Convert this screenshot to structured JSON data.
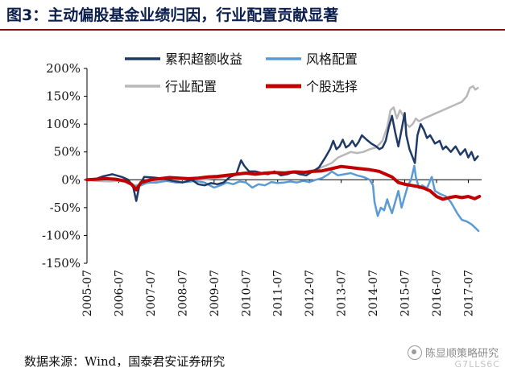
{
  "title": "图3：主动偏股基金业绩归因，行业配置贡献显著",
  "source": "数据来源：Wind，国泰君安证券研究",
  "watermark": {
    "text": "陈显顺策略研究",
    "sub": "G7LLS6C"
  },
  "colors": {
    "excess": "#1f3a66",
    "style": "#5b9bd5",
    "industry": "#b8b8b8",
    "stock": "#c00000",
    "title": "#0b1f4e",
    "rule": "#8b0d1c"
  },
  "chart_data": {
    "type": "line",
    "ylim": [
      -150,
      200
    ],
    "yticks": [
      -150,
      -100,
      -50,
      0,
      50,
      100,
      150,
      200
    ],
    "ytick_labels": [
      "-150%",
      "-100%",
      "-50%",
      "0%",
      "50%",
      "100%",
      "150%",
      "200%"
    ],
    "xlim": [
      2005.5,
      2017.92
    ],
    "xticks": [
      2005.5,
      2006.5,
      2007.5,
      2008.5,
      2009.5,
      2010.5,
      2011.5,
      2012.5,
      2013.5,
      2014.5,
      2015.5,
      2016.5,
      2017.5
    ],
    "xtick_labels": [
      "2005-07",
      "2006-07",
      "2007-07",
      "2008-07",
      "2009-07",
      "2010-07",
      "2011-07",
      "2012-07",
      "2013-07",
      "2014-07",
      "2015-07",
      "2016-07",
      "2017-07"
    ],
    "legend": [
      "累积超额收益",
      "风格配置",
      "行业配置",
      "个股选择"
    ],
    "series": [
      {
        "name": "累积超额收益",
        "key": "excess",
        "points": [
          [
            2005.5,
            0
          ],
          [
            2005.8,
            2
          ],
          [
            2006.0,
            6
          ],
          [
            2006.3,
            10
          ],
          [
            2006.6,
            5
          ],
          [
            2006.8,
            0
          ],
          [
            2006.95,
            -12
          ],
          [
            2007.05,
            -38
          ],
          [
            2007.15,
            -10
          ],
          [
            2007.3,
            5
          ],
          [
            2007.6,
            4
          ],
          [
            2007.9,
            2
          ],
          [
            2008.2,
            -2
          ],
          [
            2008.5,
            -5
          ],
          [
            2008.8,
            0
          ],
          [
            2009.0,
            -8
          ],
          [
            2009.2,
            -10
          ],
          [
            2009.4,
            -6
          ],
          [
            2009.6,
            -8
          ],
          [
            2009.8,
            -5
          ],
          [
            2010.0,
            5
          ],
          [
            2010.2,
            10
          ],
          [
            2010.35,
            35
          ],
          [
            2010.45,
            25
          ],
          [
            2010.6,
            15
          ],
          [
            2010.8,
            15
          ],
          [
            2011.0,
            12
          ],
          [
            2011.2,
            10
          ],
          [
            2011.4,
            15
          ],
          [
            2011.6,
            8
          ],
          [
            2011.8,
            10
          ],
          [
            2012.0,
            14
          ],
          [
            2012.2,
            10
          ],
          [
            2012.4,
            8
          ],
          [
            2012.6,
            15
          ],
          [
            2012.8,
            22
          ],
          [
            2013.0,
            40
          ],
          [
            2013.15,
            55
          ],
          [
            2013.25,
            70
          ],
          [
            2013.35,
            55
          ],
          [
            2013.45,
            60
          ],
          [
            2013.55,
            72
          ],
          [
            2013.65,
            58
          ],
          [
            2013.75,
            62
          ],
          [
            2013.85,
            70
          ],
          [
            2013.95,
            60
          ],
          [
            2014.05,
            68
          ],
          [
            2014.15,
            80
          ],
          [
            2014.3,
            72
          ],
          [
            2014.45,
            65
          ],
          [
            2014.6,
            60
          ],
          [
            2014.7,
            55
          ],
          [
            2014.8,
            58
          ],
          [
            2014.9,
            70
          ],
          [
            2015.0,
            95
          ],
          [
            2015.1,
            115
          ],
          [
            2015.2,
            85
          ],
          [
            2015.3,
            60
          ],
          [
            2015.4,
            90
          ],
          [
            2015.5,
            120
          ],
          [
            2015.55,
            80
          ],
          [
            2015.65,
            55
          ],
          [
            2015.75,
            40
          ],
          [
            2015.82,
            30
          ],
          [
            2015.9,
            80
          ],
          [
            2016.0,
            100
          ],
          [
            2016.1,
            90
          ],
          [
            2016.2,
            75
          ],
          [
            2016.3,
            80
          ],
          [
            2016.45,
            65
          ],
          [
            2016.6,
            70
          ],
          [
            2016.7,
            55
          ],
          [
            2016.8,
            60
          ],
          [
            2016.95,
            50
          ],
          [
            2017.1,
            60
          ],
          [
            2017.25,
            45
          ],
          [
            2017.4,
            55
          ],
          [
            2017.5,
            40
          ],
          [
            2017.6,
            50
          ],
          [
            2017.7,
            35
          ],
          [
            2017.8,
            42
          ]
        ]
      },
      {
        "name": "风格配置",
        "key": "style",
        "points": [
          [
            2005.5,
            0
          ],
          [
            2005.8,
            0
          ],
          [
            2006.2,
            2
          ],
          [
            2006.5,
            0
          ],
          [
            2006.8,
            -2
          ],
          [
            2007.0,
            -12
          ],
          [
            2007.2,
            -10
          ],
          [
            2007.4,
            -5
          ],
          [
            2007.7,
            -5
          ],
          [
            2008.0,
            -2
          ],
          [
            2008.3,
            -5
          ],
          [
            2008.6,
            -4
          ],
          [
            2008.9,
            -2
          ],
          [
            2009.2,
            -5
          ],
          [
            2009.5,
            -14
          ],
          [
            2009.7,
            -10
          ],
          [
            2009.9,
            -5
          ],
          [
            2010.1,
            -8
          ],
          [
            2010.3,
            -3
          ],
          [
            2010.5,
            -5
          ],
          [
            2010.7,
            -14
          ],
          [
            2010.9,
            -8
          ],
          [
            2011.1,
            -10
          ],
          [
            2011.3,
            -4
          ],
          [
            2011.5,
            -6
          ],
          [
            2011.7,
            -5
          ],
          [
            2011.9,
            -3
          ],
          [
            2012.1,
            -5
          ],
          [
            2012.3,
            -2
          ],
          [
            2012.5,
            -4
          ],
          [
            2012.7,
            0
          ],
          [
            2012.9,
            3
          ],
          [
            2013.1,
            10
          ],
          [
            2013.2,
            15
          ],
          [
            2013.4,
            8
          ],
          [
            2013.6,
            10
          ],
          [
            2013.8,
            12
          ],
          [
            2014.0,
            8
          ],
          [
            2014.2,
            5
          ],
          [
            2014.4,
            0
          ],
          [
            2014.5,
            -10
          ],
          [
            2014.55,
            -40
          ],
          [
            2014.65,
            -65
          ],
          [
            2014.75,
            -50
          ],
          [
            2014.85,
            -55
          ],
          [
            2014.95,
            -35
          ],
          [
            2015.0,
            -45
          ],
          [
            2015.1,
            -60
          ],
          [
            2015.2,
            -40
          ],
          [
            2015.3,
            -20
          ],
          [
            2015.4,
            -50
          ],
          [
            2015.5,
            -30
          ],
          [
            2015.6,
            -10
          ],
          [
            2015.7,
            0
          ],
          [
            2015.8,
            25
          ],
          [
            2015.85,
            5
          ],
          [
            2015.95,
            -15
          ],
          [
            2016.05,
            -10
          ],
          [
            2016.2,
            -15
          ],
          [
            2016.35,
            5
          ],
          [
            2016.45,
            -20
          ],
          [
            2016.6,
            -25
          ],
          [
            2016.8,
            -30
          ],
          [
            2016.95,
            -40
          ],
          [
            2017.05,
            -50
          ],
          [
            2017.15,
            -60
          ],
          [
            2017.3,
            -72
          ],
          [
            2017.45,
            -75
          ],
          [
            2017.6,
            -80
          ],
          [
            2017.75,
            -88
          ],
          [
            2017.82,
            -92
          ]
        ]
      },
      {
        "name": "行业配置",
        "key": "industry",
        "points": [
          [
            2005.5,
            0
          ],
          [
            2005.8,
            -2
          ],
          [
            2006.2,
            -3
          ],
          [
            2006.5,
            -2
          ],
          [
            2006.8,
            -5
          ],
          [
            2007.0,
            -10
          ],
          [
            2007.2,
            -8
          ],
          [
            2007.5,
            -5
          ],
          [
            2007.8,
            -3
          ],
          [
            2008.1,
            -2
          ],
          [
            2008.4,
            0
          ],
          [
            2008.8,
            2
          ],
          [
            2009.1,
            0
          ],
          [
            2009.4,
            2
          ],
          [
            2009.7,
            4
          ],
          [
            2010.0,
            6
          ],
          [
            2010.3,
            10
          ],
          [
            2010.6,
            12
          ],
          [
            2010.9,
            10
          ],
          [
            2011.2,
            12
          ],
          [
            2011.5,
            14
          ],
          [
            2011.8,
            14
          ],
          [
            2012.1,
            16
          ],
          [
            2012.4,
            15
          ],
          [
            2012.7,
            18
          ],
          [
            2013.0,
            25
          ],
          [
            2013.2,
            30
          ],
          [
            2013.4,
            40
          ],
          [
            2013.6,
            45
          ],
          [
            2013.8,
            50
          ],
          [
            2014.0,
            48
          ],
          [
            2014.2,
            50
          ],
          [
            2014.4,
            55
          ],
          [
            2014.6,
            58
          ],
          [
            2014.8,
            70
          ],
          [
            2014.95,
            95
          ],
          [
            2015.05,
            125
          ],
          [
            2015.15,
            130
          ],
          [
            2015.25,
            110
          ],
          [
            2015.35,
            125
          ],
          [
            2015.45,
            115
          ],
          [
            2015.55,
            100
          ],
          [
            2015.65,
            95
          ],
          [
            2015.75,
            100
          ],
          [
            2015.85,
            110
          ],
          [
            2015.95,
            105
          ],
          [
            2016.1,
            110
          ],
          [
            2016.3,
            115
          ],
          [
            2016.5,
            120
          ],
          [
            2016.7,
            125
          ],
          [
            2016.9,
            130
          ],
          [
            2017.1,
            135
          ],
          [
            2017.3,
            140
          ],
          [
            2017.45,
            150
          ],
          [
            2017.55,
            165
          ],
          [
            2017.65,
            168
          ],
          [
            2017.72,
            162
          ],
          [
            2017.8,
            165
          ]
        ]
      },
      {
        "name": "个股选择",
        "key": "stock",
        "points": [
          [
            2005.5,
            0
          ],
          [
            2005.8,
            1
          ],
          [
            2006.1,
            2
          ],
          [
            2006.4,
            1
          ],
          [
            2006.7,
            -2
          ],
          [
            2006.9,
            -8
          ],
          [
            2007.05,
            -18
          ],
          [
            2007.2,
            -5
          ],
          [
            2007.5,
            0
          ],
          [
            2007.8,
            2
          ],
          [
            2008.1,
            4
          ],
          [
            2008.4,
            3
          ],
          [
            2008.7,
            2
          ],
          [
            2009.0,
            3
          ],
          [
            2009.3,
            5
          ],
          [
            2009.6,
            6
          ],
          [
            2009.9,
            8
          ],
          [
            2010.2,
            10
          ],
          [
            2010.5,
            12
          ],
          [
            2010.8,
            10
          ],
          [
            2011.1,
            12
          ],
          [
            2011.4,
            13
          ],
          [
            2011.7,
            12
          ],
          [
            2012.0,
            14
          ],
          [
            2012.3,
            13
          ],
          [
            2012.6,
            15
          ],
          [
            2012.9,
            16
          ],
          [
            2013.2,
            20
          ],
          [
            2013.5,
            24
          ],
          [
            2013.8,
            22
          ],
          [
            2014.1,
            20
          ],
          [
            2014.4,
            18
          ],
          [
            2014.7,
            15
          ],
          [
            2014.9,
            10
          ],
          [
            2015.1,
            5
          ],
          [
            2015.3,
            -5
          ],
          [
            2015.5,
            -8
          ],
          [
            2015.7,
            -10
          ],
          [
            2015.9,
            -12
          ],
          [
            2016.1,
            -15
          ],
          [
            2016.3,
            -20
          ],
          [
            2016.5,
            -30
          ],
          [
            2016.7,
            -35
          ],
          [
            2016.9,
            -32
          ],
          [
            2017.1,
            -30
          ],
          [
            2017.3,
            -32
          ],
          [
            2017.5,
            -30
          ],
          [
            2017.7,
            -34
          ],
          [
            2017.85,
            -30
          ]
        ]
      }
    ]
  }
}
